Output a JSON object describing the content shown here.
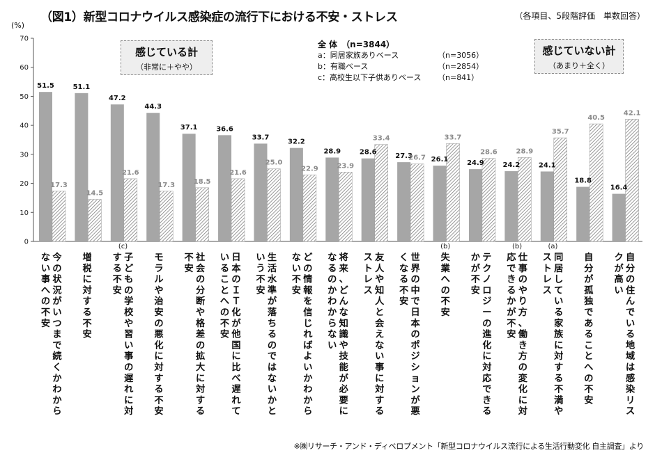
{
  "title": "（図1）新型コロナウイルス感染症の流行下における不安・ストレス",
  "note": "（各項目、5段階評価　単数回答）",
  "unit": "(%)",
  "footnote": "※㈱リサーチ・アンド・ディベロプメント「新型コロナウイルス流行による生活行動変化 自主調査」より",
  "callouts": {
    "felt": {
      "head": "感じている計",
      "sub": "（非常に＋やや）"
    },
    "not_felt": {
      "head": "感じていない計",
      "sub": "（あまり＋全く）"
    }
  },
  "legend": {
    "header": "全 体　（n=3844）",
    "items": [
      {
        "label": "a：同居家族ありベース",
        "n": "（n=3056）"
      },
      {
        "label": "b：有職ベース",
        "n": "（n=2854）"
      },
      {
        "label": "c：高校生以下子供ありベース",
        "n": "（n=841）"
      }
    ]
  },
  "colors": {
    "felt": "#a6a6a6",
    "not_felt_hatch": "#7f7f7f",
    "not_felt_label": "#8c8c8c"
  },
  "chart_data": {
    "type": "bar",
    "ylim": [
      0,
      70
    ],
    "yticks": [
      0,
      10,
      20,
      30,
      40,
      50,
      60,
      70
    ],
    "categories": [
      {
        "label": "今の状況がいつまで続くかわからない事への不安",
        "base": ""
      },
      {
        "label": "増税に対する不安",
        "base": ""
      },
      {
        "label": "子どもの学校や習い事の遅れに対する不安",
        "base": "(c)"
      },
      {
        "label": "モラルや治安の悪化に対する不安",
        "base": ""
      },
      {
        "label": "社会の分断や格差の拡大に対する不安",
        "base": ""
      },
      {
        "label": "日本のＩＴ化が他国に比べ遅れていることへの不安",
        "base": ""
      },
      {
        "label": "生活水準が落ちるのではないかという不安",
        "base": ""
      },
      {
        "label": "どの情報を信じればよいかわからない不安",
        "base": ""
      },
      {
        "label": "将来、どんな知識や技能が必要になるのかわからない",
        "base": ""
      },
      {
        "label": "友人や知人と会えない事に対するストレス",
        "base": ""
      },
      {
        "label": "世界の中で日本のポジションが悪くなる不安",
        "base": ""
      },
      {
        "label": "失業への不安",
        "base": "(b)"
      },
      {
        "label": "テクノロジーの進化に対応できるかが不安",
        "base": ""
      },
      {
        "label": "仕事のやり方、働き方の変化に対応できるかが不安",
        "base": "(b)"
      },
      {
        "label": "同居している家族に対する不満やストレス",
        "base": "(a)"
      },
      {
        "label": "自分が孤独であることへの不安",
        "base": ""
      },
      {
        "label": "自分の住んでいる地域は感染リスクが高い",
        "base": ""
      }
    ],
    "series": [
      {
        "name": "感じている計",
        "values": [
          51.5,
          51.1,
          47.2,
          44.3,
          37.1,
          36.6,
          33.7,
          32.2,
          28.9,
          28.6,
          27.3,
          26.1,
          24.9,
          24.2,
          24.1,
          18.8,
          16.4
        ]
      },
      {
        "name": "感じていない計",
        "values": [
          17.3,
          14.5,
          21.6,
          17.3,
          18.5,
          21.6,
          25.0,
          22.9,
          23.9,
          33.4,
          26.7,
          33.7,
          28.6,
          28.9,
          35.7,
          40.5,
          42.1
        ]
      }
    ],
    "value_labels": [
      [
        "51.5",
        "51.1",
        "47.2",
        "44.3",
        "37.1",
        "36.6",
        "33.7",
        "32.2",
        "28.9",
        "28.6",
        "27.3",
        "26.1",
        "24.9",
        "24.2",
        "24.1",
        "18.8",
        "16.4"
      ],
      [
        "17.3",
        "14.5",
        "21.6",
        "17.3",
        "18.5",
        "21.6",
        "25.0",
        "22.9",
        "23.9",
        "33.4",
        "26.7",
        "33.7",
        "28.6",
        "28.9",
        "35.7",
        "40.5",
        "42.1"
      ]
    ]
  }
}
